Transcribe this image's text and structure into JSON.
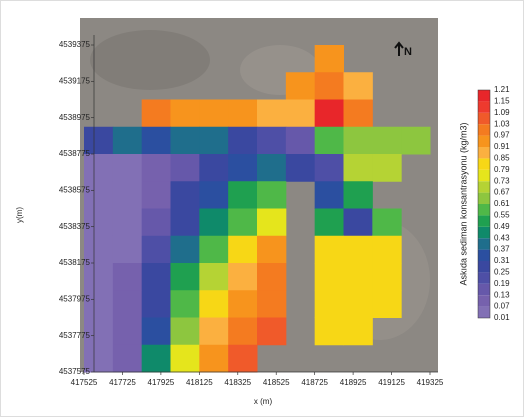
{
  "chart_data": {
    "type": "contour",
    "xlabel": "x (m)",
    "ylabel": "y(m)",
    "colorbar_label": "Askıda sediman konsantrasyonu (kg/m3)",
    "north_label": "N",
    "xlim": [
      417525,
      419325
    ],
    "xticks": [
      417525,
      417725,
      417925,
      418125,
      418325,
      418525,
      418725,
      418925,
      419125,
      419325
    ],
    "ylim": [
      4537575,
      4539375
    ],
    "yticks": [
      4537575,
      4537775,
      4537975,
      4538175,
      4538375,
      4538575,
      4538775,
      4538975,
      4539175,
      4539375
    ],
    "levels": [
      0.01,
      0.07,
      0.13,
      0.19,
      0.25,
      0.31,
      0.37,
      0.43,
      0.49,
      0.55,
      0.61,
      0.67,
      0.73,
      0.79,
      0.85,
      0.91,
      0.97,
      1.03,
      1.09,
      1.15,
      1.21
    ],
    "colors": [
      "#8270b5",
      "#7661ad",
      "#6658aa",
      "#4e4fa6",
      "#3a48a0",
      "#2b4fa0",
      "#1f6e8c",
      "#0f8a6a",
      "#1fa050",
      "#4fb848",
      "#8dc63f",
      "#b5d334",
      "#e5e51c",
      "#f7d716",
      "#fbb040",
      "#f7941d",
      "#f47b20",
      "#f05a2a",
      "#ee3a2e",
      "#e8262a"
    ],
    "grid_x": [
      417600,
      417750,
      417900,
      418050,
      418200,
      418350,
      418500,
      418650,
      418800,
      418950,
      419100,
      419250
    ],
    "grid_y": [
      4539300,
      4539150,
      4539000,
      4538850,
      4538700,
      4538550,
      4538400,
      4538250,
      4538100,
      4537950,
      4537800,
      4537650
    ],
    "z": [
      [
        null,
        null,
        null,
        null,
        null,
        null,
        null,
        null,
        0.95,
        null,
        null,
        null
      ],
      [
        null,
        null,
        null,
        null,
        null,
        null,
        null,
        0.95,
        1.0,
        0.9,
        null,
        null
      ],
      [
        null,
        null,
        1.0,
        0.95,
        0.95,
        0.95,
        0.9,
        0.9,
        1.15,
        1.0,
        null,
        null
      ],
      [
        0.3,
        0.4,
        0.35,
        0.4,
        0.4,
        0.3,
        0.2,
        0.15,
        0.6,
        0.65,
        0.65,
        0.64
      ],
      [
        0.04,
        0.04,
        0.08,
        0.15,
        0.25,
        0.35,
        0.4,
        0.3,
        0.2,
        0.7,
        0.7,
        null
      ],
      [
        0.04,
        0.05,
        0.12,
        0.25,
        0.35,
        0.5,
        0.6,
        null,
        0.35,
        0.5,
        null,
        null
      ],
      [
        0.04,
        0.05,
        0.15,
        0.3,
        0.45,
        0.6,
        0.75,
        null,
        0.5,
        0.25,
        0.6,
        null
      ],
      [
        0.04,
        0.06,
        0.2,
        0.4,
        0.6,
        0.8,
        0.95,
        null,
        0.8,
        0.8,
        0.8,
        null
      ],
      [
        0.04,
        0.08,
        0.25,
        0.5,
        0.7,
        0.9,
        1.0,
        null,
        0.82,
        0.82,
        0.82,
        null
      ],
      [
        0.04,
        0.09,
        0.3,
        0.55,
        0.8,
        0.95,
        1.0,
        null,
        0.82,
        0.82,
        0.82,
        null
      ],
      [
        0.04,
        0.1,
        0.35,
        0.65,
        0.85,
        1.0,
        1.05,
        null,
        0.82,
        0.82,
        null,
        null
      ],
      [
        0.04,
        0.12,
        0.45,
        0.75,
        0.95,
        1.05,
        null,
        null,
        null,
        null,
        null,
        null
      ]
    ]
  }
}
